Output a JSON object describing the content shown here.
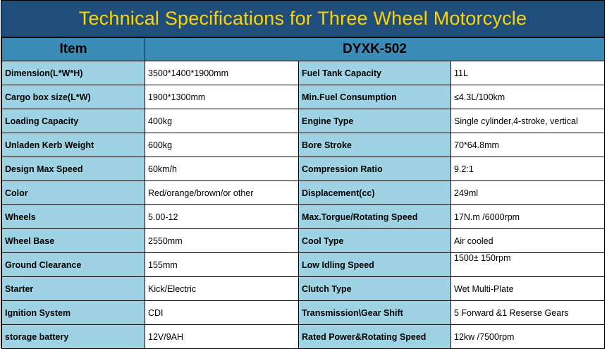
{
  "title": "Technical Specifications for Three Wheel Motorcycle",
  "header": {
    "item_label": "Item",
    "model_label": "DYXK-502"
  },
  "colors": {
    "title_background": "#1f4e7a",
    "title_text": "#ffd200",
    "header_background": "#3a8bb5",
    "label_background": "#9fd3e3",
    "value_background": "#ffffff"
  },
  "rows": [
    {
      "label": "Dimension(L*W*H)",
      "value": "3500*1400*1900mm",
      "label2": "Fuel Tank Capacity",
      "value2": "11L"
    },
    {
      "label": "Cargo box size(L*W)",
      "value": "1900*1300mm",
      "label2": "Min.Fuel Consumption",
      "value2": "≤4.3L/100km"
    },
    {
      "label": "Loading Capacity",
      "value": "400kg",
      "label2": "Engine Type",
      "value2": "Single cylinder,4-stroke, vertical"
    },
    {
      "label": "Unladen Kerb Weight",
      "value": "600kg",
      "label2": "Bore Stroke",
      "value2": "70*64.8mm"
    },
    {
      "label": "Design Max Speed",
      "value": "60km/h",
      "label2": "Compression Ratio",
      "value2": "9.2:1"
    },
    {
      "label": "Color",
      "value": "Red/orange/brown/or other",
      "label2": "Displacement(cc)",
      "value2": "249ml"
    },
    {
      "label": "Wheels",
      "value": "5.00-12",
      "label2": "Max.Torgue/Rotating Speed",
      "value2": "17N.m /6000rpm"
    },
    {
      "label": "Wheel Base",
      "value": "2550mm",
      "label2": "Cool Type",
      "value2": "Air cooled"
    },
    {
      "label": "Ground Clearance",
      "value": "155mm",
      "label2": "Low Idling Speed",
      "value2": "1500± 150rpm"
    },
    {
      "label": "Starter",
      "value": "Kick/Electric",
      "label2": "Clutch Type",
      "value2": "Wet Multi-Plate"
    },
    {
      "label": "Ignition System",
      "value": "CDI",
      "label2": "Transmission\\Gear Shift",
      "value2": "5 Forward &1 Reserse Gears"
    },
    {
      "label": "storage battery",
      "value": "12V/9AH",
      "label2": "Rated Power&Rotating Speed",
      "value2": "12kw /7500rpm"
    }
  ]
}
